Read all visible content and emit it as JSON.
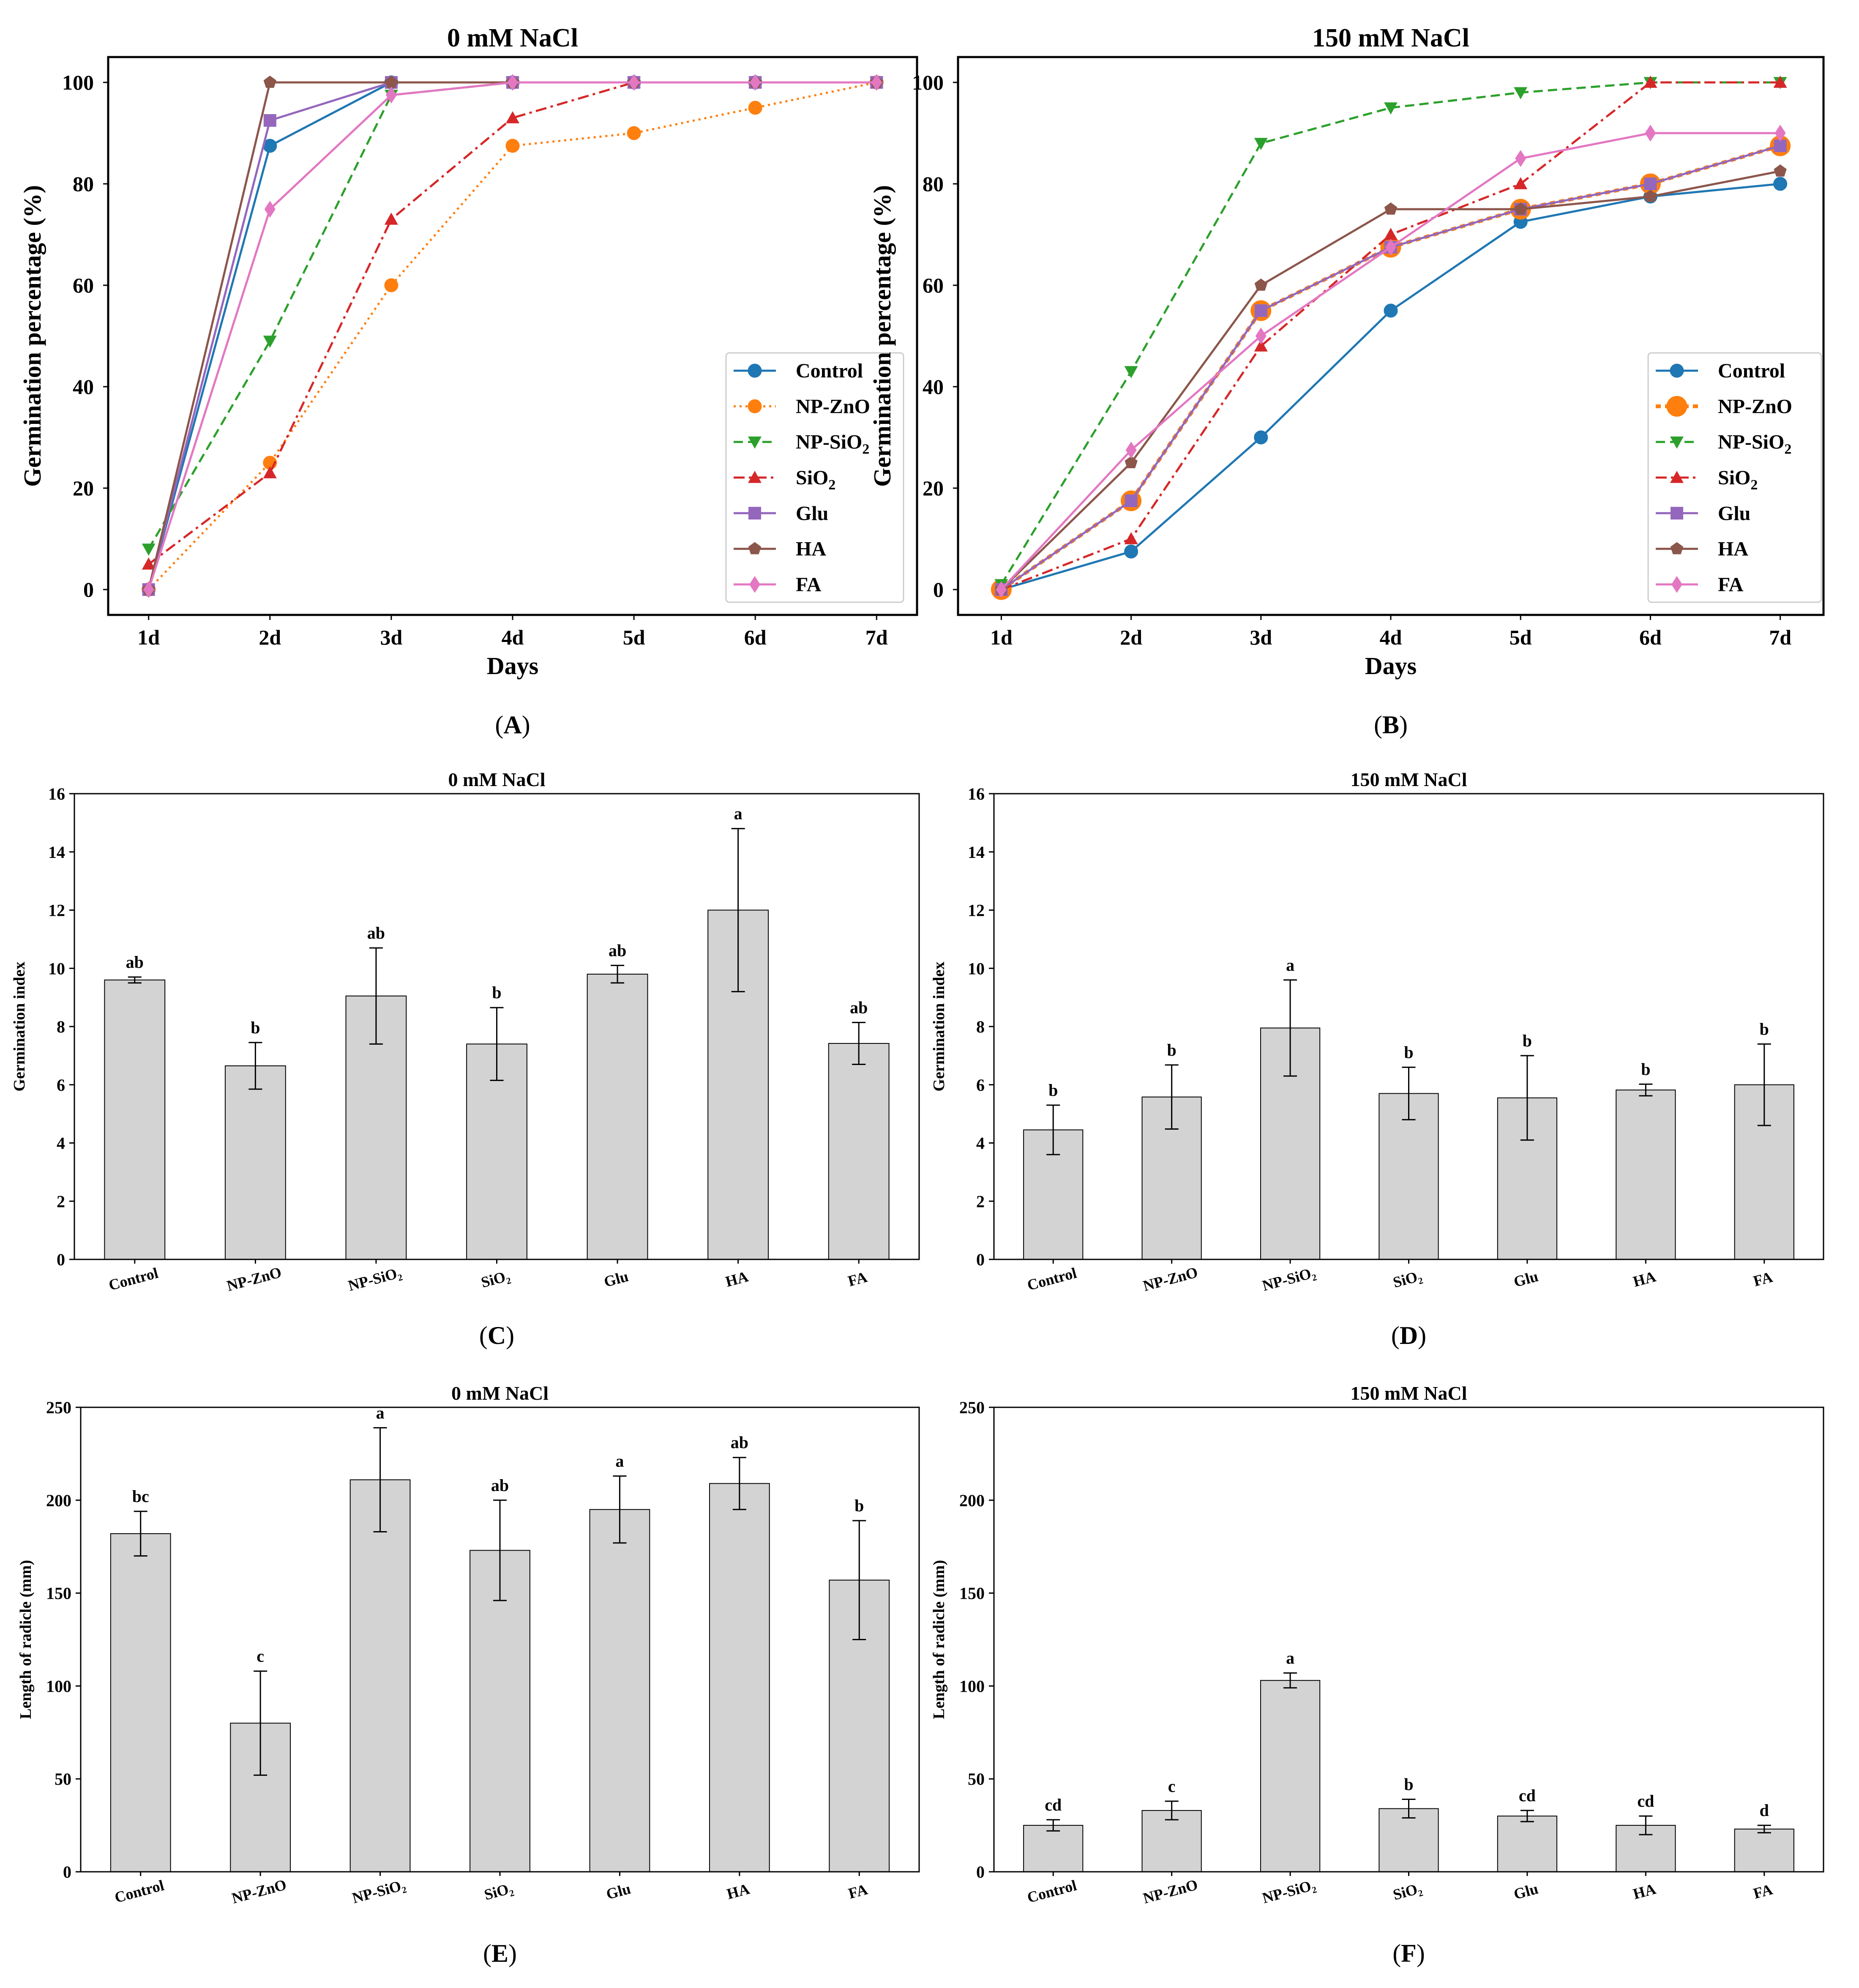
{
  "panels": [
    {
      "panel_label": "(A)",
      "letter": "A",
      "chart_data": {
        "type": "line",
        "title": "0 mM NaCl",
        "xlabel": "Days",
        "ylabel": "Germination percentage (%)",
        "categories": [
          "1d",
          "2d",
          "3d",
          "4d",
          "5d",
          "6d",
          "7d"
        ],
        "yticks": [
          "0",
          "20",
          "40",
          "60",
          "80",
          "100"
        ],
        "ylim": [
          -5,
          105
        ],
        "legend_position": "lower right",
        "series": [
          {
            "name": "Control",
            "color": "#1f77b4",
            "dash": "solid",
            "marker": "circle",
            "values": [
              0,
              87.5,
              100,
              100,
              100,
              100,
              100
            ]
          },
          {
            "name": "NP-ZnO",
            "color": "#ff7f0e",
            "dash": "dotted",
            "marker": "circle",
            "values": [
              0,
              25,
              60,
              87.5,
              90,
              95,
              100
            ]
          },
          {
            "name": "NP-SiO2",
            "color": "#2ca02c",
            "dash": "dashed",
            "marker": "triangle-down",
            "values": [
              8,
              49,
              97.5,
              100,
              100,
              100,
              100
            ]
          },
          {
            "name": "SiO2",
            "color": "#d62728",
            "dash": "dashdot",
            "marker": "triangle-up",
            "values": [
              5,
              23,
              73,
              93,
              100,
              100,
              100
            ]
          },
          {
            "name": "Glu",
            "color": "#9467bd",
            "dash": "solid",
            "marker": "square",
            "values": [
              0,
              92.5,
              100,
              100,
              100,
              100,
              100
            ]
          },
          {
            "name": "HA",
            "color": "#8c564b",
            "dash": "solid",
            "marker": "pentagon",
            "values": [
              0,
              100,
              100,
              100,
              100,
              100,
              100
            ]
          },
          {
            "name": "FA",
            "color": "#e377c2",
            "dash": "solid",
            "marker": "diamond",
            "values": [
              0,
              75,
              97.5,
              100,
              100,
              100,
              100
            ]
          }
        ]
      }
    },
    {
      "panel_label": "(B)",
      "letter": "B",
      "chart_data": {
        "type": "line",
        "title": "150 mM NaCl",
        "xlabel": "Days",
        "ylabel": "Germination percentage (%)",
        "categories": [
          "1d",
          "2d",
          "3d",
          "4d",
          "5d",
          "6d",
          "7d"
        ],
        "yticks": [
          "0",
          "20",
          "40",
          "60",
          "80",
          "100"
        ],
        "ylim": [
          -5,
          105
        ],
        "legend_position": "lower right",
        "series": [
          {
            "name": "Control",
            "color": "#1f77b4",
            "dash": "solid",
            "marker": "circle",
            "values": [
              0,
              7.5,
              30,
              55,
              72.5,
              77.5,
              80
            ]
          },
          {
            "name": "NP-ZnO",
            "color": "#ff7f0e",
            "dash": "dotted-thick",
            "marker": "circle-large",
            "values": [
              0,
              17.5,
              55,
              67.5,
              75,
              80,
              87.5
            ]
          },
          {
            "name": "NP-SiO2",
            "color": "#2ca02c",
            "dash": "dashed",
            "marker": "triangle-down",
            "values": [
              1,
              43,
              88,
              95,
              98,
              100,
              100
            ]
          },
          {
            "name": "SiO2",
            "color": "#d62728",
            "dash": "dashdot",
            "marker": "triangle-up",
            "values": [
              0,
              10,
              48,
              70,
              80,
              100,
              100
            ]
          },
          {
            "name": "Glu",
            "color": "#9467bd",
            "dash": "solid",
            "marker": "square",
            "values": [
              0,
              17.5,
              55,
              67.5,
              75,
              80,
              87.5
            ]
          },
          {
            "name": "HA",
            "color": "#8c564b",
            "dash": "solid",
            "marker": "pentagon",
            "values": [
              0,
              25,
              60,
              75,
              75,
              77.5,
              82.5
            ]
          },
          {
            "name": "FA",
            "color": "#e377c2",
            "dash": "solid",
            "marker": "diamond",
            "values": [
              0,
              27.5,
              50,
              67.5,
              85,
              90,
              90
            ]
          }
        ]
      }
    },
    {
      "panel_label": "(C)",
      "letter": "C",
      "chart_data": {
        "type": "bar",
        "title": "0 mM NaCl",
        "xlabel": "",
        "ylabel": "Germination index",
        "categories": [
          "Control",
          "NP-ZnO",
          "NP-SiO₂",
          "SiO₂",
          "Glu",
          "HA",
          "FA"
        ],
        "yticks": [
          "0",
          "2",
          "4",
          "6",
          "8",
          "10",
          "12",
          "14",
          "16"
        ],
        "ylim": [
          0,
          16
        ],
        "values": [
          9.6,
          6.65,
          9.05,
          7.4,
          9.8,
          12.0,
          7.42
        ],
        "errors": [
          0.1,
          0.8,
          1.65,
          1.25,
          0.3,
          2.8,
          0.72
        ],
        "significance": [
          "ab",
          "b",
          "ab",
          "b",
          "ab",
          "a",
          "ab"
        ],
        "bar_color": "#d3d3d3"
      }
    },
    {
      "panel_label": "(D)",
      "letter": "D",
      "chart_data": {
        "type": "bar",
        "title": "150 mM NaCl",
        "xlabel": "",
        "ylabel": "Germination index",
        "categories": [
          "Control",
          "NP-ZnO",
          "NP-SiO₂",
          "SiO₂",
          "Glu",
          "HA",
          "FA"
        ],
        "yticks": [
          "0",
          "2",
          "4",
          "6",
          "8",
          "10",
          "12",
          "14",
          "16"
        ],
        "ylim": [
          0,
          16
        ],
        "values": [
          4.45,
          5.58,
          7.95,
          5.7,
          5.55,
          5.82,
          6.0
        ],
        "errors": [
          0.85,
          1.1,
          1.65,
          0.9,
          1.45,
          0.2,
          1.4
        ],
        "significance": [
          "b",
          "b",
          "a",
          "b",
          "b",
          "b",
          "b"
        ],
        "bar_color": "#d3d3d3"
      }
    },
    {
      "panel_label": "(E)",
      "letter": "E",
      "chart_data": {
        "type": "bar",
        "title": "0 mM NaCl",
        "xlabel": "",
        "ylabel": "Length of radicle (mm)",
        "categories": [
          "Control",
          "NP-ZnO",
          "NP-SiO₂",
          "SiO₂",
          "Glu",
          "HA",
          "FA"
        ],
        "yticks": [
          "0",
          "50",
          "100",
          "150",
          "200",
          "250"
        ],
        "ylim": [
          0,
          250
        ],
        "values": [
          182,
          80,
          211,
          173,
          195,
          209,
          157
        ],
        "errors": [
          12,
          28,
          28,
          27,
          18,
          14,
          32
        ],
        "significance": [
          "bc",
          "c",
          "a",
          "ab",
          "a",
          "ab",
          "b"
        ],
        "bar_color": "#d3d3d3"
      }
    },
    {
      "panel_label": "(F)",
      "letter": "F",
      "chart_data": {
        "type": "bar",
        "title": "150 mM NaCl",
        "xlabel": "",
        "ylabel": "Length of radicle (mm)",
        "categories": [
          "Control",
          "NP-ZnO",
          "NP-SiO₂",
          "SiO₂",
          "Glu",
          "HA",
          "FA"
        ],
        "yticks": [
          "0",
          "50",
          "100",
          "150",
          "200",
          "250"
        ],
        "ylim": [
          0,
          250
        ],
        "values": [
          25,
          33,
          103,
          34,
          30,
          25,
          23
        ],
        "errors": [
          3,
          5,
          4,
          5,
          3,
          5,
          2
        ],
        "significance": [
          "cd",
          "c",
          "a",
          "b",
          "cd",
          "cd",
          "d"
        ],
        "bar_color": "#d3d3d3"
      }
    }
  ]
}
